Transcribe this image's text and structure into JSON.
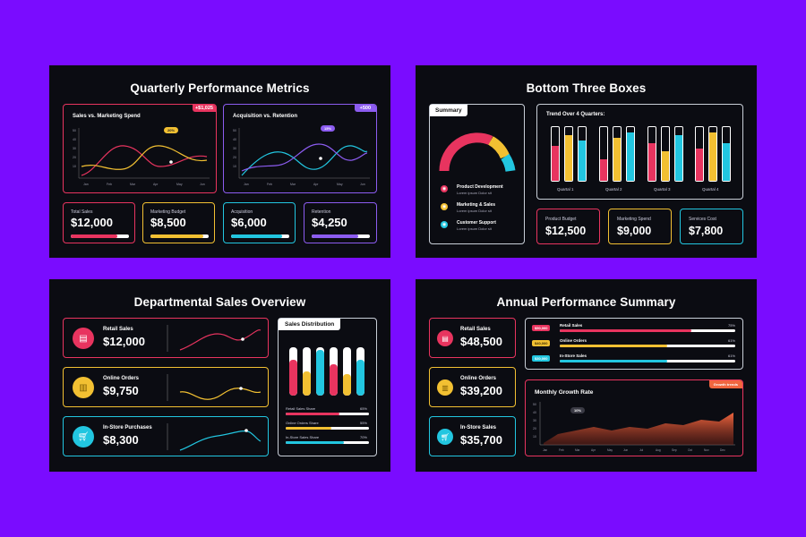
{
  "colors": {
    "bg": "#7a0cff",
    "pink": "#e8345f",
    "yellow": "#f2c032",
    "cyan": "#22c6e0",
    "purple": "#8c5cf0",
    "panel": "#0b0c12"
  },
  "s1": {
    "title": "Quarterly Performance Metrics",
    "chart1": {
      "title": "Sales vs. Marketing Spend",
      "badge": "+$1,025",
      "pill": "20%",
      "months": [
        "Jan",
        "Feb",
        "Mar",
        "Apr",
        "May",
        "Jun"
      ],
      "yticks": [
        "50",
        "40",
        "30",
        "20",
        "10"
      ]
    },
    "chart2": {
      "title": "Acquisition vs. Retention",
      "badge": "+500",
      "pill": "15%",
      "months": [
        "Jan",
        "Feb",
        "Mar",
        "Apr",
        "May",
        "Jun"
      ],
      "yticks": [
        "50",
        "40",
        "30",
        "20",
        "10"
      ]
    },
    "kpis": [
      {
        "label": "Total Sales",
        "value": "$12,000",
        "progress": 0.8
      },
      {
        "label": "Marketing Budget",
        "value": "$8,500",
        "progress": 0.9
      },
      {
        "label": "Acquisition",
        "value": "$6,000",
        "progress": 0.88
      },
      {
        "label": "Retention",
        "value": "$4,250",
        "progress": 0.8
      }
    ]
  },
  "s2": {
    "title": "Bottom Three Boxes",
    "summary_label": "Summary",
    "legend": [
      {
        "title": "Product Development",
        "sub": "Lorem ipsum Dolor sit"
      },
      {
        "title": "Marketing & Sales",
        "sub": "Lorem ipsum Dolor sit"
      },
      {
        "title": "Customer Support",
        "sub": "Lorem ipsum Dolor sit"
      }
    ],
    "gauge": {
      "pink": 0.55,
      "yellow": 0.25,
      "cyan": 0.2
    },
    "trend_title": "Trend Over 4 Quarters:",
    "quarters": [
      "Quartal 1",
      "Quartal 2",
      "Quartal 3",
      "Quartal 4"
    ],
    "bars": [
      0.65,
      0.85,
      0.75,
      0.4,
      0.8,
      0.9,
      0.7,
      0.55,
      0.85,
      0.6,
      0.9,
      0.7
    ],
    "kpis": [
      {
        "label": "Product Budget",
        "value": "$12,500"
      },
      {
        "label": "Marketing Spend",
        "value": "$9,000"
      },
      {
        "label": "Services Cost",
        "value": "$7,800"
      }
    ]
  },
  "s3": {
    "title": "Departmental Sales Overview",
    "rows": [
      {
        "label": "Retail Sales",
        "value": "$12,000"
      },
      {
        "label": "Online Orders",
        "value": "$9,750"
      },
      {
        "label": "In-Store Purchases",
        "value": "$8,300"
      }
    ],
    "dist_label": "Sales Distribution",
    "tubes": [
      0.75,
      0.5,
      0.95,
      0.65,
      0.45,
      0.75
    ],
    "shares": [
      {
        "label": "Retail Sales Share",
        "pct": "65%",
        "value": 0.65
      },
      {
        "label": "Online Orders Share",
        "pct": "55%",
        "value": 0.55
      },
      {
        "label": "In-Store Sales Share",
        "pct": "70%",
        "value": 0.7
      }
    ]
  },
  "s4": {
    "title": "Annual Performance Summary",
    "rows": [
      {
        "label": "Retail Sales",
        "value": "$48,500"
      },
      {
        "label": "Online Orders",
        "value": "$39,200"
      },
      {
        "label": "In-Store Sales",
        "value": "$35,700"
      }
    ],
    "bars": [
      {
        "tag": "$50,000",
        "label": "Retail Sales",
        "pct": "75%",
        "value": 0.75
      },
      {
        "tag": "$40,000",
        "label": "Online Orders",
        "pct": "61%",
        "value": 0.61
      },
      {
        "tag": "$30,000",
        "label": "In-Store Sales",
        "pct": "61%",
        "value": 0.61
      }
    ],
    "growth_title": "Monthly Growth Rate",
    "growth_tag": "Growth trends",
    "growth_pill": "10%",
    "months": [
      "Jan",
      "Feb",
      "Mar",
      "Apr",
      "May",
      "Jun",
      "Jul",
      "Aug",
      "Sep",
      "Oct",
      "Nov",
      "Dec"
    ],
    "yticks": [
      "50",
      "40",
      "30",
      "20",
      "10"
    ]
  }
}
